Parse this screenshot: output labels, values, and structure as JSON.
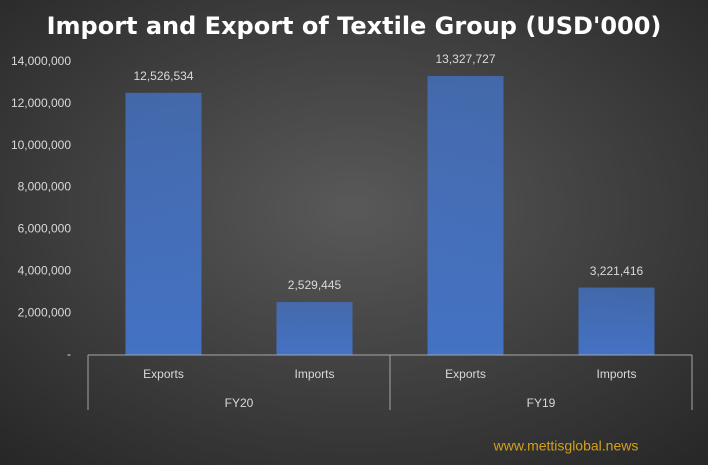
{
  "chart_data": {
    "type": "bar",
    "title": "Import and Export of Textile Group (USD'000)",
    "categories": [
      "Exports",
      "Imports",
      "Exports",
      "Imports"
    ],
    "groups": [
      "FY20",
      "FY19"
    ],
    "values": [
      12526534,
      2529445,
      13327727,
      3221416
    ],
    "value_labels": [
      "12,526,534",
      "2,529,445",
      "13,327,727",
      "3,221,416"
    ],
    "color": "#4472c4",
    "ylim": [
      0,
      14000000
    ],
    "yticks": [
      {
        "value": 0,
        "label": "-"
      },
      {
        "value": 2000000,
        "label": "2,000,000"
      },
      {
        "value": 4000000,
        "label": "4,000,000"
      },
      {
        "value": 6000000,
        "label": "6,000,000"
      },
      {
        "value": 8000000,
        "label": "8,000,000"
      },
      {
        "value": 10000000,
        "label": "10,000,000"
      },
      {
        "value": 12000000,
        "label": "12,000,000"
      },
      {
        "value": 14000000,
        "label": "14,000,000"
      }
    ],
    "grid": false,
    "watermark": "www.mettisglobal.news"
  }
}
